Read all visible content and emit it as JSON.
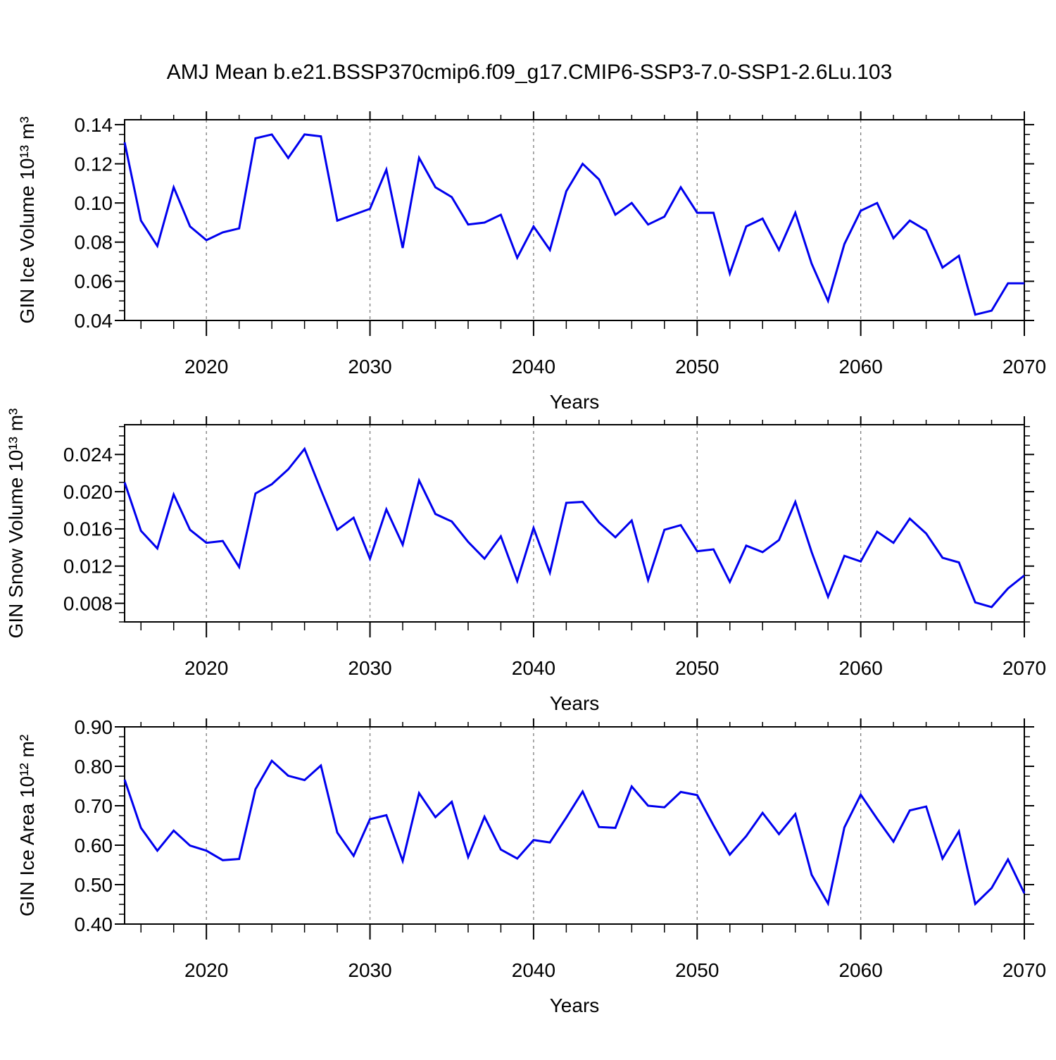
{
  "title": "AMJ Mean b.e21.BSSP370cmip6.f09_g17.CMIP6-SSP3-7.0-SSP1-2.6Lu.103",
  "colors": {
    "line": "#0000ee",
    "grid": "#7a7a7a",
    "axis": "#000000",
    "background": "#ffffff"
  },
  "chart_data": [
    {
      "type": "line",
      "name": "gin-ice-volume",
      "ylabel": "GIN Ice Volume 10¹³ m³",
      "xlabel": "Years",
      "xlim": [
        2015,
        2070
      ],
      "ylim": [
        0.04,
        0.1425
      ],
      "x_tick_values": [
        2020,
        2030,
        2040,
        2050,
        2060,
        2070
      ],
      "x_tick_labels": [
        "2020",
        "2030",
        "2040",
        "2050",
        "2060",
        "2070"
      ],
      "x_minor_step": 2,
      "gridline_years": [
        2020,
        2030,
        2040,
        2050,
        2060
      ],
      "y_tick_values": [
        0.04,
        0.06,
        0.08,
        0.1,
        0.12,
        0.14
      ],
      "y_tick_labels": [
        "0.04",
        "0.06",
        "0.08",
        "0.10",
        "0.12",
        "0.14"
      ],
      "y_minor_step": 0.005,
      "grid": true,
      "legend": "none",
      "x": [
        2015,
        2016,
        2017,
        2018,
        2019,
        2020,
        2021,
        2022,
        2023,
        2024,
        2025,
        2026,
        2027,
        2028,
        2029,
        2030,
        2031,
        2032,
        2033,
        2034,
        2035,
        2036,
        2037,
        2038,
        2039,
        2040,
        2041,
        2042,
        2043,
        2044,
        2045,
        2046,
        2047,
        2048,
        2049,
        2050,
        2051,
        2052,
        2053,
        2054,
        2055,
        2056,
        2057,
        2058,
        2059,
        2060,
        2061,
        2062,
        2063,
        2064,
        2065,
        2066,
        2067,
        2068,
        2069,
        2070
      ],
      "values": [
        0.131,
        0.091,
        0.078,
        0.108,
        0.088,
        0.081,
        0.085,
        0.087,
        0.133,
        0.135,
        0.123,
        0.135,
        0.134,
        0.091,
        0.094,
        0.097,
        0.117,
        0.077,
        0.123,
        0.108,
        0.103,
        0.089,
        0.09,
        0.094,
        0.072,
        0.088,
        0.076,
        0.106,
        0.12,
        0.112,
        0.094,
        0.1,
        0.089,
        0.093,
        0.108,
        0.095,
        0.095,
        0.064,
        0.088,
        0.092,
        0.076,
        0.095,
        0.069,
        0.05,
        0.079,
        0.096,
        0.1,
        0.082,
        0.091,
        0.086,
        0.067,
        0.073,
        0.043,
        0.045,
        0.059,
        0.059
      ]
    },
    {
      "type": "line",
      "name": "gin-snow-volume",
      "ylabel": "GIN Snow Volume 10¹³ m³",
      "xlabel": "Years",
      "xlim": [
        2015,
        2070
      ],
      "ylim": [
        0.006,
        0.0272
      ],
      "x_tick_values": [
        2020,
        2030,
        2040,
        2050,
        2060,
        2070
      ],
      "x_tick_labels": [
        "2020",
        "2030",
        "2040",
        "2050",
        "2060",
        "2070"
      ],
      "x_minor_step": 2,
      "gridline_years": [
        2020,
        2030,
        2040,
        2050,
        2060
      ],
      "y_tick_values": [
        0.008,
        0.012,
        0.016,
        0.02,
        0.024
      ],
      "y_tick_labels": [
        "0.008",
        "0.012",
        "0.016",
        "0.020",
        "0.024"
      ],
      "y_minor_step": 0.001,
      "grid": true,
      "legend": "none",
      "x": [
        2015,
        2016,
        2017,
        2018,
        2019,
        2020,
        2021,
        2022,
        2023,
        2024,
        2025,
        2026,
        2027,
        2028,
        2029,
        2030,
        2031,
        2032,
        2033,
        2034,
        2035,
        2036,
        2037,
        2038,
        2039,
        2040,
        2041,
        2042,
        2043,
        2044,
        2045,
        2046,
        2047,
        2048,
        2049,
        2050,
        2051,
        2052,
        2053,
        2054,
        2055,
        2056,
        2057,
        2058,
        2059,
        2060,
        2061,
        2062,
        2063,
        2064,
        2065,
        2066,
        2067,
        2068,
        2069,
        2070
      ],
      "values": [
        0.021,
        0.0158,
        0.0139,
        0.0197,
        0.0159,
        0.0145,
        0.0147,
        0.0119,
        0.0198,
        0.0208,
        0.0224,
        0.0246,
        0.0202,
        0.0159,
        0.0172,
        0.0128,
        0.0181,
        0.0143,
        0.0212,
        0.0176,
        0.0168,
        0.0146,
        0.0128,
        0.0152,
        0.0104,
        0.0161,
        0.0113,
        0.0188,
        0.0189,
        0.0167,
        0.0151,
        0.0169,
        0.0105,
        0.0159,
        0.0164,
        0.0136,
        0.0138,
        0.0103,
        0.0142,
        0.0135,
        0.0148,
        0.0189,
        0.0135,
        0.0087,
        0.0131,
        0.0125,
        0.0157,
        0.0145,
        0.0171,
        0.0155,
        0.0129,
        0.0124,
        0.0081,
        0.0076,
        0.0096,
        0.011
      ]
    },
    {
      "type": "line",
      "name": "gin-ice-area",
      "ylabel": "GIN Ice Area 10¹² m²",
      "xlabel": "Years",
      "xlim": [
        2015,
        2070
      ],
      "ylim": [
        0.4,
        0.9
      ],
      "x_tick_values": [
        2020,
        2030,
        2040,
        2050,
        2060,
        2070
      ],
      "x_tick_labels": [
        "2020",
        "2030",
        "2040",
        "2050",
        "2060",
        "2070"
      ],
      "x_minor_step": 2,
      "gridline_years": [
        2020,
        2030,
        2040,
        2050,
        2060
      ],
      "y_tick_values": [
        0.4,
        0.5,
        0.6,
        0.7,
        0.8,
        0.9
      ],
      "y_tick_labels": [
        "0.40",
        "0.50",
        "0.60",
        "0.70",
        "0.80",
        "0.90"
      ],
      "y_minor_step": 0.025,
      "grid": true,
      "legend": "none",
      "x": [
        2015,
        2016,
        2017,
        2018,
        2019,
        2020,
        2021,
        2022,
        2023,
        2024,
        2025,
        2026,
        2027,
        2028,
        2029,
        2030,
        2031,
        2032,
        2033,
        2034,
        2035,
        2036,
        2037,
        2038,
        2039,
        2040,
        2041,
        2042,
        2043,
        2044,
        2045,
        2046,
        2047,
        2048,
        2049,
        2050,
        2051,
        2052,
        2053,
        2054,
        2055,
        2056,
        2057,
        2058,
        2059,
        2060,
        2061,
        2062,
        2063,
        2064,
        2065,
        2066,
        2067,
        2068,
        2069,
        2070
      ],
      "values": [
        0.766,
        0.644,
        0.586,
        0.637,
        0.599,
        0.586,
        0.562,
        0.565,
        0.742,
        0.814,
        0.776,
        0.765,
        0.802,
        0.632,
        0.573,
        0.666,
        0.676,
        0.56,
        0.732,
        0.671,
        0.71,
        0.57,
        0.672,
        0.589,
        0.566,
        0.613,
        0.607,
        0.67,
        0.736,
        0.646,
        0.644,
        0.749,
        0.7,
        0.696,
        0.735,
        0.727,
        0.65,
        0.576,
        0.623,
        0.682,
        0.628,
        0.679,
        0.525,
        0.452,
        0.645,
        0.728,
        0.667,
        0.609,
        0.688,
        0.698,
        0.566,
        0.635,
        0.451,
        0.491,
        0.564,
        0.478
      ]
    }
  ]
}
